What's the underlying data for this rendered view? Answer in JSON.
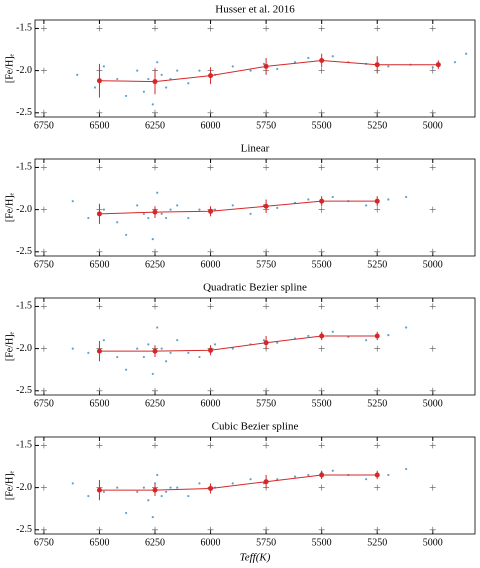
{
  "chart_data": [
    {
      "type": "scatter",
      "title": "Husser et al. 2016",
      "ylabel": "[Fe/H]ₑ",
      "xlim": [
        6790,
        4810
      ],
      "ylim": [
        -2.55,
        -1.4
      ],
      "xticks": [
        6750,
        6500,
        6250,
        6000,
        5750,
        5500,
        5250,
        5000
      ],
      "yticks": [
        -2.5,
        {
          "value": -2,
          "label": "-2.0"
        },
        -1.5
      ],
      "grid": true,
      "scatter": {
        "color": "#1f77b4",
        "x": [
          6600,
          6520,
          6480,
          6420,
          6380,
          6330,
          6300,
          6280,
          6260,
          6250,
          6240,
          6220,
          6200,
          6180,
          6150,
          6100,
          6050,
          5980,
          5900,
          5820,
          5760,
          5700,
          5620,
          5560,
          5500,
          5450,
          5380,
          5300,
          5200,
          5100,
          5000,
          4900,
          4850
        ],
        "y": [
          -2.05,
          -2.2,
          -1.95,
          -2.1,
          -2.3,
          -2.0,
          -2.25,
          -2.1,
          -2.4,
          -2.15,
          -1.9,
          -2.05,
          -2.2,
          -2.1,
          -2.0,
          -2.15,
          -2.0,
          -2.05,
          -1.95,
          -2.0,
          -1.92,
          -1.98,
          -1.9,
          -1.85,
          -1.88,
          -1.83,
          -1.9,
          -1.92,
          -1.95,
          -1.93,
          -1.96,
          -1.9,
          -1.8
        ]
      },
      "trend": {
        "color": "#d62728",
        "x": [
          6500,
          6250,
          6000,
          5750,
          5500,
          5250,
          4975
        ],
        "values": [
          -2.12,
          -2.13,
          -2.06,
          -1.95,
          -1.88,
          -1.93,
          -1.93
        ],
        "errors": [
          0.2,
          0.15,
          0.1,
          0.1,
          0.08,
          0.1,
          0.05
        ]
      }
    },
    {
      "type": "scatter",
      "title": "Linear",
      "ylabel": "[Fe/H]ₑ",
      "xlim": [
        6790,
        4810
      ],
      "ylim": [
        -2.55,
        -1.4
      ],
      "xticks": [
        6750,
        6500,
        6250,
        6000,
        5750,
        5500,
        5250,
        5000
      ],
      "yticks": [
        -2.5,
        {
          "value": -2,
          "label": "-2.0"
        },
        -1.5
      ],
      "grid": true,
      "scatter": {
        "color": "#1f77b4",
        "x": [
          6620,
          6550,
          6480,
          6420,
          6380,
          6330,
          6300,
          6280,
          6260,
          6250,
          6240,
          6220,
          6200,
          6180,
          6150,
          6100,
          6050,
          5980,
          5900,
          5820,
          5760,
          5700,
          5620,
          5560,
          5500,
          5450,
          5380,
          5300,
          5200,
          5120
        ],
        "y": [
          -1.9,
          -2.1,
          -2.0,
          -2.15,
          -2.3,
          -1.95,
          -2.05,
          -2.1,
          -2.35,
          -2.0,
          -1.8,
          -2.05,
          -2.1,
          -2.0,
          -1.95,
          -2.1,
          -2.0,
          -2.0,
          -1.95,
          -2.05,
          -1.95,
          -1.98,
          -1.92,
          -1.88,
          -1.9,
          -1.85,
          -1.9,
          -1.95,
          -1.88,
          -1.85
        ]
      },
      "trend": {
        "color": "#d62728",
        "x": [
          6500,
          6250,
          6000,
          5750,
          5500,
          5250
        ],
        "values": [
          -2.05,
          -2.03,
          -2.02,
          -1.96,
          -1.9,
          -1.9
        ],
        "errors": [
          0.12,
          0.07,
          0.06,
          0.08,
          0.06,
          0.06
        ]
      }
    },
    {
      "type": "scatter",
      "title": "Quadratic Bezier spline",
      "ylabel": "[Fe/H]ₑ",
      "xlim": [
        6790,
        4810
      ],
      "ylim": [
        -2.55,
        -1.4
      ],
      "xticks": [
        6750,
        6500,
        6250,
        6000,
        5750,
        5500,
        5250,
        5000
      ],
      "yticks": [
        -2.5,
        {
          "value": -2,
          "label": "-2.0"
        },
        -1.5
      ],
      "grid": true,
      "scatter": {
        "color": "#1f77b4",
        "x": [
          6620,
          6550,
          6480,
          6420,
          6380,
          6330,
          6300,
          6280,
          6260,
          6250,
          6240,
          6220,
          6200,
          6180,
          6150,
          6100,
          6050,
          5980,
          5900,
          5820,
          5760,
          5700,
          5620,
          5560,
          5500,
          5450,
          5380,
          5300,
          5200,
          5120
        ],
        "y": [
          -2.0,
          -2.05,
          -1.9,
          -2.1,
          -2.25,
          -2.0,
          -2.1,
          -1.95,
          -2.3,
          -2.05,
          -1.75,
          -2.0,
          -2.15,
          -2.05,
          -1.9,
          -2.05,
          -2.1,
          -1.95,
          -2.0,
          -1.95,
          -1.9,
          -1.93,
          -1.88,
          -1.85,
          -1.83,
          -1.8,
          -1.86,
          -1.9,
          -1.84,
          -1.75
        ]
      },
      "trend": {
        "color": "#d62728",
        "x": [
          6500,
          6250,
          6000,
          5750,
          5500,
          5250
        ],
        "values": [
          -2.03,
          -2.03,
          -2.02,
          -1.93,
          -1.85,
          -1.85
        ],
        "errors": [
          0.12,
          0.07,
          0.06,
          0.08,
          0.05,
          0.05
        ]
      }
    },
    {
      "type": "scatter",
      "title": "Cubic Bezier spline",
      "ylabel": "[Fe/H]ₑ",
      "xlabel": "Teff(K)",
      "xlim": [
        6790,
        4810
      ],
      "ylim": [
        -2.55,
        -1.4
      ],
      "xticks": [
        6750,
        6500,
        6250,
        6000,
        5750,
        5500,
        5250,
        5000
      ],
      "yticks": [
        -2.5,
        {
          "value": -2,
          "label": "-2.0"
        },
        -1.5
      ],
      "grid": true,
      "scatter": {
        "color": "#1f77b4",
        "x": [
          6620,
          6550,
          6480,
          6420,
          6380,
          6330,
          6300,
          6280,
          6260,
          6250,
          6240,
          6220,
          6200,
          6180,
          6150,
          6100,
          6050,
          5980,
          5900,
          5820,
          5760,
          5700,
          5620,
          5560,
          5500,
          5450,
          5380,
          5300,
          5200,
          5120
        ],
        "y": [
          -1.95,
          -2.1,
          -2.05,
          -2.0,
          -2.3,
          -2.05,
          -2.0,
          -2.15,
          -2.35,
          -1.95,
          -1.85,
          -2.1,
          -2.05,
          -2.0,
          -2.0,
          -2.1,
          -1.95,
          -2.0,
          -1.95,
          -1.9,
          -1.95,
          -1.9,
          -1.87,
          -1.85,
          -1.82,
          -1.8,
          -1.85,
          -1.9,
          -1.85,
          -1.78
        ]
      },
      "trend": {
        "color": "#d62728",
        "x": [
          6500,
          6250,
          6000,
          5750,
          5500,
          5250
        ],
        "values": [
          -2.03,
          -2.03,
          -2.01,
          -1.93,
          -1.85,
          -1.85
        ],
        "errors": [
          0.12,
          0.07,
          0.06,
          0.08,
          0.05,
          0.05
        ]
      }
    }
  ]
}
